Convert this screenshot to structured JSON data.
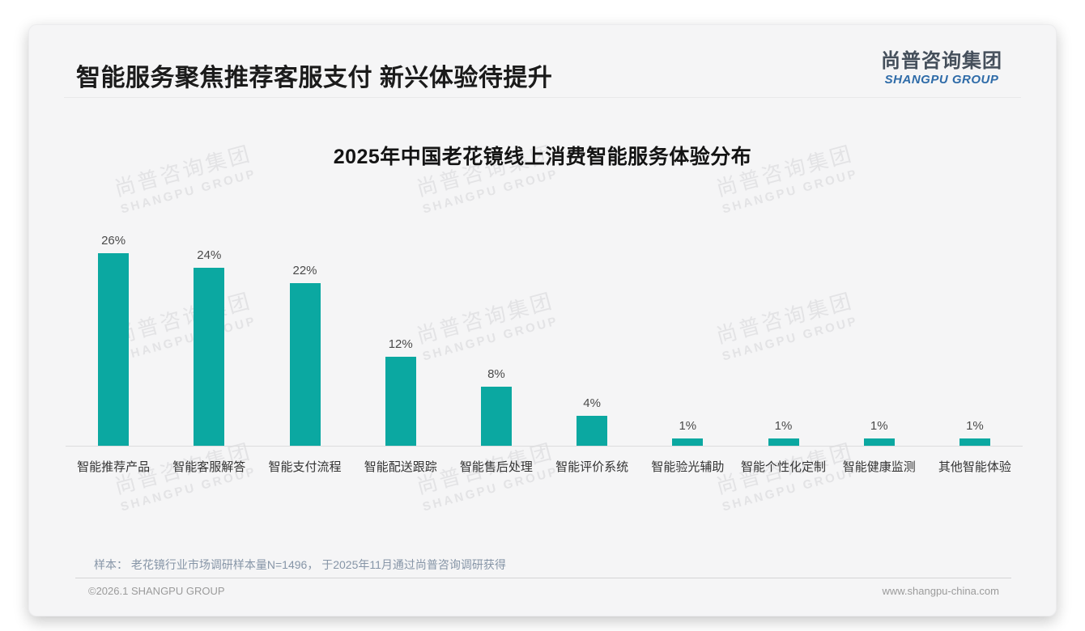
{
  "header": {
    "title": "智能服务聚焦推荐客服支付 新兴体验待提升",
    "logo": {
      "cn": "尚普咨询集团",
      "en": "SHANGPU GROUP"
    }
  },
  "watermark": {
    "line1": "尚普咨询集团",
    "line2": "SHANGPU GROUP"
  },
  "chart_data": {
    "type": "bar",
    "title": "2025年中国老花镜线上消费智能服务体验分布",
    "categories": [
      "智能推荐产品",
      "智能客服解答",
      "智能支付流程",
      "智能配送跟踪",
      "智能售后处理",
      "智能评价系统",
      "智能验光辅助",
      "智能个性化定制",
      "智能健康监测",
      "其他智能体验"
    ],
    "values": [
      26,
      24,
      22,
      12,
      8,
      4,
      1,
      1,
      1,
      1
    ],
    "data_labels": [
      "26%",
      "24%",
      "22%",
      "12%",
      "8%",
      "4%",
      "1%",
      "1%",
      "1%",
      "1%"
    ],
    "unit": "%",
    "ylim": [
      0,
      28
    ],
    "grid": false,
    "legend": false,
    "bar_color": "#0ba8a1"
  },
  "footer": {
    "source_note": "样本： 老花镜行业市场调研样本量N=1496， 于2025年11月通过尚普咨询调研获得",
    "copyright": "©2026.1 SHANGPU GROUP",
    "website": "www.shangpu-china.com"
  },
  "colors": {
    "bar": "#0ba8a1",
    "logo_cn": "#454f5b",
    "logo_en": "#2e6ba8",
    "source_note": "#8695a7",
    "card_bg": "#f5f5f6",
    "watermark": "#e3e3e5"
  }
}
